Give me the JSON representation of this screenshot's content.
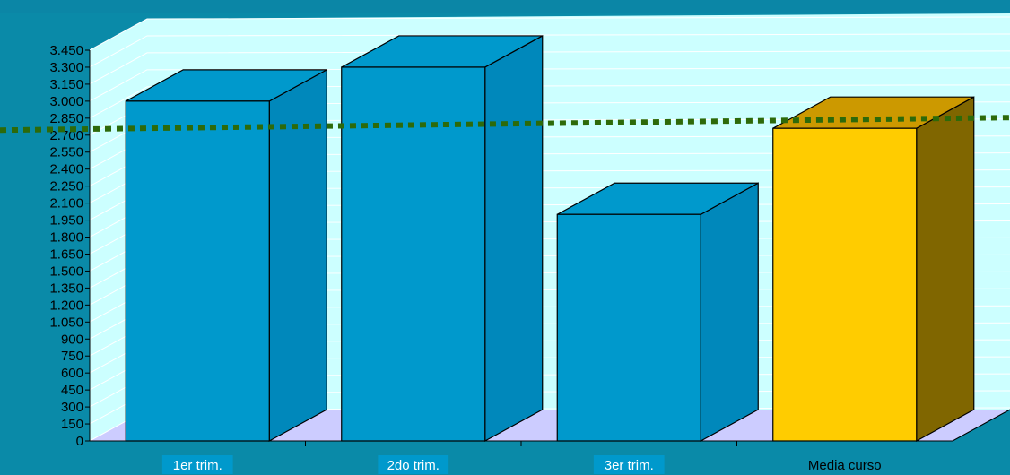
{
  "chart_data": {
    "type": "bar",
    "categories": [
      "1er trim.",
      "2do trim.",
      "3er trim.",
      "Media curso"
    ],
    "values": [
      3000,
      3300,
      2000,
      2760
    ],
    "highlight_category": "Media curso",
    "reference_line": {
      "value": 2760,
      "style": "dotted",
      "color": "#2d6a0a"
    },
    "ylim": [
      0,
      3450
    ],
    "yticks": [
      0,
      150,
      300,
      450,
      600,
      750,
      900,
      1050,
      1200,
      1350,
      1500,
      1650,
      1800,
      1950,
      2100,
      2250,
      2400,
      2550,
      2700,
      2850,
      3000,
      3150,
      3300,
      3450
    ],
    "ytick_labels": [
      "0",
      "150",
      "300",
      "450",
      "600",
      "750",
      "900",
      "1.050",
      "1.200",
      "1.350",
      "1.500",
      "1.650",
      "1.800",
      "1.950",
      "2.100",
      "2.250",
      "2.400",
      "2.550",
      "2.700",
      "2.850",
      "3.000",
      "3.150",
      "3.300",
      "3.450"
    ],
    "grid": true,
    "title": "",
    "xlabel": "",
    "ylabel": ""
  },
  "colors": {
    "bar_front": "#0099cc",
    "bar_side": "#0088bb",
    "bar_top": "#0099cc",
    "highlight_front": "#ffcc00",
    "highlight_side": "#806600",
    "highlight_top": "#cc9900",
    "wall": "#ccffff",
    "grid": "#ffffff",
    "floor": "#ccccff",
    "background": "#0a8aa8",
    "label_bg": "#0099cc"
  }
}
